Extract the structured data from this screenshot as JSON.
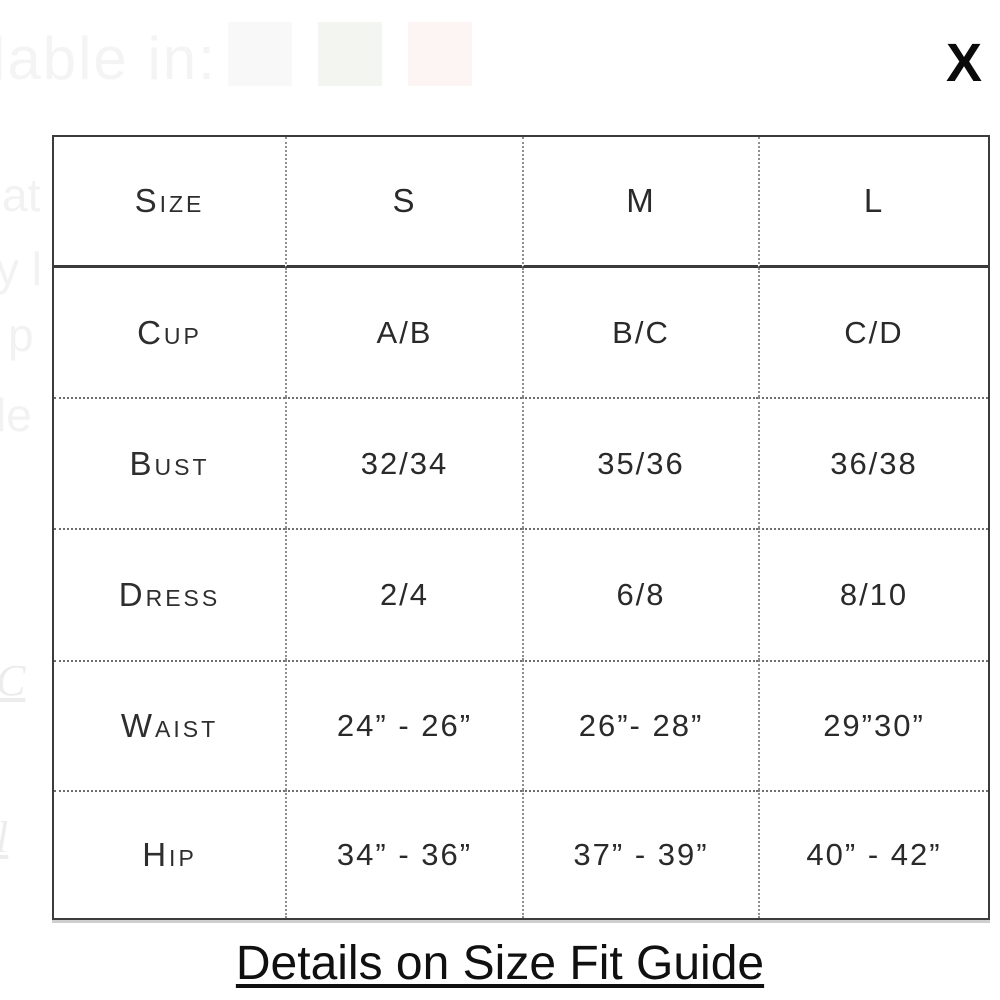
{
  "background": {
    "available_in_text": "lable in:",
    "swatches": [
      {
        "name": "color-swatch-gray",
        "color": "#f8f8f8"
      },
      {
        "name": "color-swatch-camo",
        "color": "#f2f5f0"
      },
      {
        "name": "color-swatch-pink",
        "color": "#fcf5f4"
      }
    ],
    "left_fragments": [
      {
        "text": "at"
      },
      {
        "text": "y l"
      },
      {
        "text": "p"
      },
      {
        "text": "le"
      },
      {
        "text": "C"
      },
      {
        "text": "l"
      }
    ]
  },
  "modal": {
    "close_label": "X",
    "table": {
      "header_label": "Size",
      "header_columns": [
        "S",
        "M",
        "L"
      ],
      "rows": [
        {
          "label": "Cup",
          "values": [
            "A/B",
            "B/C",
            "C/D"
          ]
        },
        {
          "label": "Bust",
          "values": [
            "32/34",
            "35/36",
            "36/38"
          ]
        },
        {
          "label": "Dress",
          "values": [
            "2/4",
            "6/8",
            "8/10"
          ]
        },
        {
          "label": "Waist",
          "values": [
            "24” - 26”",
            "26”- 28”",
            "29”30”"
          ]
        },
        {
          "label": "Hip",
          "values": [
            "34” - 36”",
            "37” - 39”",
            "40” - 42”"
          ]
        }
      ]
    },
    "footer_link_label": "Details on Size Fit Guide"
  }
}
